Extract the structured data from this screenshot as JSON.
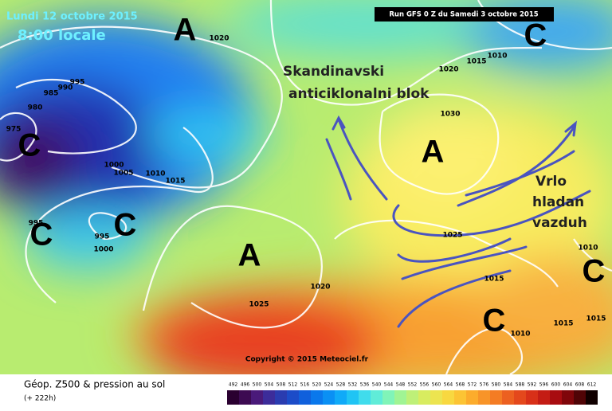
{
  "header": {
    "date": "Lundi 12 octobre 2015",
    "time": "8:00 locale",
    "run": "Run GFS 0 Z du Samedi 3 octobre 2015"
  },
  "pressure_centers": [
    "A",
    "C",
    "C",
    "A",
    "C",
    "C",
    "A",
    "C",
    "C"
  ],
  "isobar_labels": [
    "1020",
    "995",
    "990",
    "985",
    "980",
    "975",
    "1000",
    "1005",
    "1010",
    "1015",
    "995",
    "995",
    "1000",
    "1020",
    "1015",
    "1010",
    "1030",
    "1025",
    "1020",
    "1025",
    "1015",
    "1015",
    "1010",
    "1015",
    "1010"
  ],
  "annotations": [
    "Skandinavski",
    "anticiklonalni blok",
    "Vrlo",
    "hladan",
    "vazduh"
  ],
  "copyright": "Copyright © 2015 Meteociel.fr",
  "legend": {
    "title": "Géop. Z500 & pression au sol",
    "subtitle": "(+ 222h)",
    "scale": [
      "492",
      "496",
      "500",
      "504",
      "508",
      "512",
      "516",
      "520",
      "524",
      "528",
      "532",
      "536",
      "540",
      "544",
      "548",
      "552",
      "556",
      "560",
      "564",
      "568",
      "572",
      "576",
      "580",
      "584",
      "588",
      "592",
      "596",
      "600",
      "604",
      "608",
      "612"
    ],
    "colors": [
      "#2a0030",
      "#3d0a52",
      "#4a1a7a",
      "#3c2c9a",
      "#2a3cb0",
      "#1c4cc8",
      "#1060dc",
      "#0a78ec",
      "#0a90f4",
      "#10aaf8",
      "#20c4f4",
      "#40dcec",
      "#60ecd8",
      "#80f4b8",
      "#a0f494",
      "#bef078",
      "#d8ec60",
      "#ece450",
      "#f8d840",
      "#fcc434",
      "#fcac2c",
      "#f89428",
      "#f47c24",
      "#ec6020",
      "#e4481c",
      "#d83018",
      "#c41c14",
      "#a80c10",
      "#80060a",
      "#500406",
      "#100000"
    ]
  }
}
